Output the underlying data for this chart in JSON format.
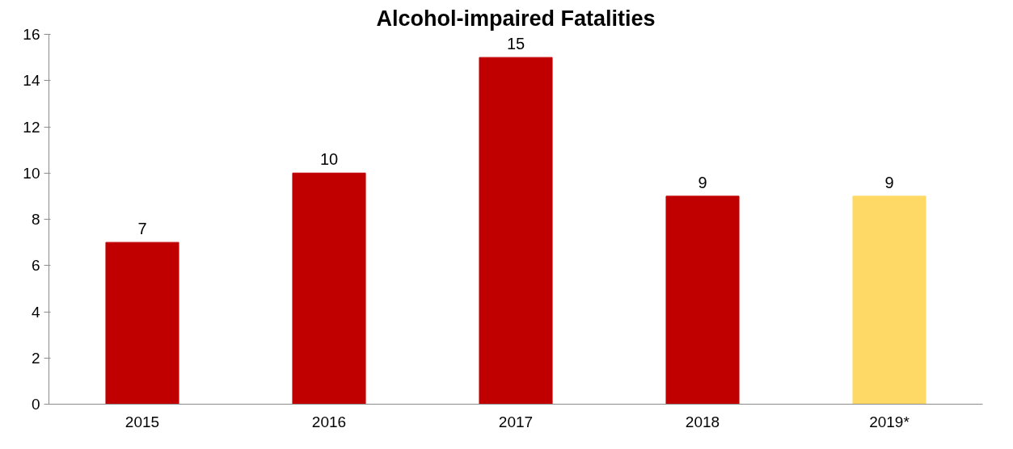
{
  "chart_data": {
    "type": "bar",
    "title": "Alcohol-impaired Fatalities",
    "categories": [
      "2015",
      "2016",
      "2017",
      "2018",
      "2019*"
    ],
    "values": [
      7,
      10,
      15,
      9,
      9
    ],
    "colors": [
      "#c00000",
      "#c00000",
      "#c00000",
      "#c00000",
      "#ffd966"
    ],
    "ylim": [
      0,
      16
    ],
    "yticks": [
      0,
      2,
      4,
      6,
      8,
      10,
      12,
      14,
      16
    ],
    "grid": false,
    "data_labels": true
  }
}
